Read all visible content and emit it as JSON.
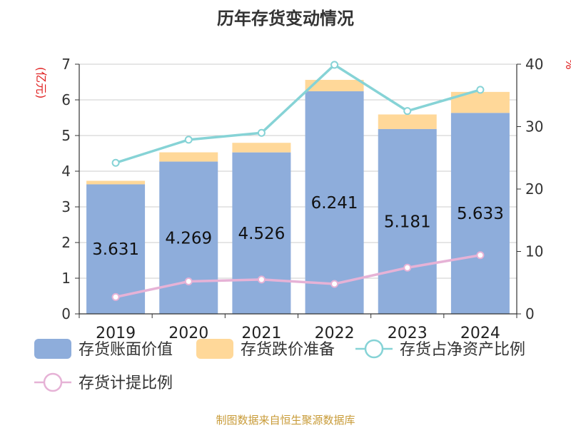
{
  "colors": {
    "book_value": "#8eaddb",
    "impairment": "#ffd899",
    "ratio_net_assets": "#86d3d6",
    "provision_ratio": "#e6b2d6",
    "unit_left": "#e02020",
    "unit_right": "#e02020",
    "source": "#c89b38",
    "axis": "#333333",
    "grid": "#cccccc"
  },
  "chart_data": {
    "type": "bar",
    "title": "历年存货变动情况",
    "left_axis_unit": "(亿元)",
    "right_axis_unit": "%",
    "categories": [
      "2019",
      "2020",
      "2021",
      "2022",
      "2023",
      "2024"
    ],
    "left_ylim": [
      0,
      7
    ],
    "left_ticks": [
      "0",
      "1",
      "2",
      "3",
      "4",
      "5",
      "6",
      "7"
    ],
    "right_ylim": [
      0,
      40
    ],
    "right_ticks": [
      "0",
      "10",
      "20",
      "30",
      "40"
    ],
    "grid": true,
    "legend_position": "bottom",
    "series": [
      {
        "name": "存货账面价值",
        "type": "bar",
        "axis": "left",
        "values": [
          3.631,
          4.269,
          4.526,
          6.241,
          5.181,
          5.633
        ],
        "labels": [
          "3.631",
          "4.269",
          "4.526",
          "6.241",
          "5.181",
          "5.633"
        ]
      },
      {
        "name": "存货跌价准备",
        "type": "bar-stacked",
        "axis": "left",
        "values": [
          0.1,
          0.26,
          0.27,
          0.32,
          0.41,
          0.59
        ]
      },
      {
        "name": "存货占净资产比例",
        "type": "line",
        "axis": "right",
        "values": [
          24.2,
          27.9,
          29.0,
          39.9,
          32.5,
          35.9
        ]
      },
      {
        "name": "存货计提比例",
        "type": "line",
        "axis": "right",
        "values": [
          2.7,
          5.2,
          5.5,
          4.8,
          7.4,
          9.4
        ]
      }
    ]
  },
  "source_text": "制图数据来自恒生聚源数据库"
}
